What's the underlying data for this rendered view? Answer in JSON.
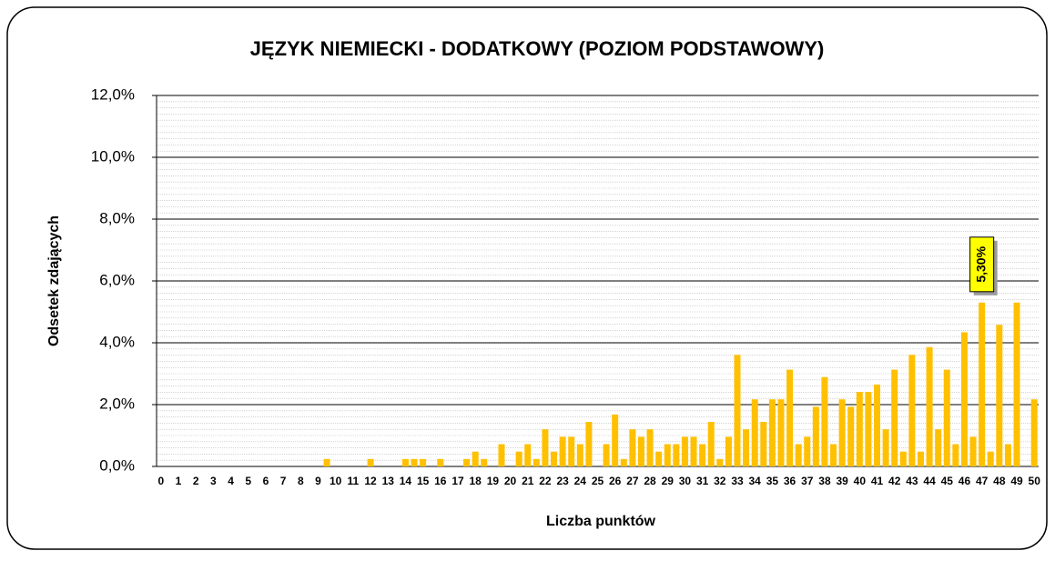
{
  "chart_data": {
    "type": "bar",
    "title": "JĘZYK NIEMIECKI - DODATKOWY (POZIOM PODSTAWOWY)",
    "x_label": "Liczba punktów",
    "y_label": "Odsetek zdających",
    "color": "#ffc000",
    "grid": true,
    "ylim": [
      0,
      12
    ],
    "yticks": [
      {
        "value": 0,
        "label": "0,0%"
      },
      {
        "value": 2,
        "label": "2,0%"
      },
      {
        "value": 4,
        "label": "4,0%"
      },
      {
        "value": 6,
        "label": "6,0%"
      },
      {
        "value": 8,
        "label": "8,0%"
      },
      {
        "value": 10,
        "label": "10,0%"
      },
      {
        "value": 12,
        "label": "12,0%"
      }
    ],
    "categories": [
      "0",
      null,
      "1",
      null,
      "2",
      null,
      "3",
      null,
      "4",
      null,
      "5",
      null,
      "6",
      null,
      "7",
      null,
      "8",
      null,
      "9",
      null,
      "10",
      null,
      "11",
      null,
      "12",
      null,
      "13",
      null,
      "14",
      null,
      "15",
      null,
      "16",
      null,
      "17",
      null,
      "18",
      null,
      "19",
      null,
      "20",
      null,
      "21",
      null,
      "22",
      null,
      "23",
      null,
      "24",
      null,
      "25",
      null,
      "26",
      null,
      "27",
      null,
      "28",
      null,
      "29",
      null,
      "30",
      null,
      "31",
      null,
      "32",
      null,
      "33",
      null,
      "34",
      null,
      "35",
      null,
      "36",
      null,
      "37",
      null,
      "38",
      null,
      "39",
      null,
      "40",
      null,
      "41",
      null,
      "42",
      null,
      "43",
      null,
      "44",
      null,
      "45",
      null,
      "46",
      null,
      "47",
      null,
      "48",
      null,
      "49",
      null,
      "50"
    ],
    "values": [
      0,
      0,
      0,
      0,
      0,
      0,
      0,
      0,
      0,
      0,
      0,
      0,
      0,
      0,
      0,
      0,
      0,
      0,
      0,
      0.24,
      0,
      0,
      0,
      0,
      0.24,
      0,
      0,
      0,
      0.24,
      0.24,
      0.24,
      0,
      0.24,
      0,
      0,
      0.24,
      0.48,
      0.24,
      0,
      0.72,
      0,
      0.48,
      0.72,
      0.24,
      1.2,
      0.48,
      0.96,
      0.96,
      0.72,
      1.44,
      0,
      0.72,
      1.68,
      0.24,
      1.2,
      0.96,
      1.2,
      0.48,
      0.72,
      0.72,
      0.96,
      0.96,
      0.72,
      1.44,
      0.24,
      0.96,
      3.61,
      1.2,
      2.17,
      1.44,
      2.17,
      2.17,
      3.13,
      0.72,
      0.96,
      1.93,
      2.89,
      0.72,
      2.17,
      1.93,
      2.41,
      2.41,
      2.65,
      1.2,
      3.13,
      0.48,
      3.61,
      0.48,
      3.86,
      1.2,
      3.13,
      0.72,
      4.34,
      0.96,
      5.3,
      0.48,
      4.58,
      0.72,
      5.3,
      0,
      2.17
    ],
    "value_labels": [
      null,
      null,
      null,
      null,
      null,
      null,
      null,
      null,
      null,
      null,
      null,
      null,
      null,
      null,
      null,
      null,
      null,
      null,
      null,
      null,
      null,
      null,
      null,
      null,
      null,
      null,
      null,
      null,
      null,
      null,
      null,
      null,
      null,
      null,
      null,
      null,
      null,
      null,
      null,
      null,
      null,
      null,
      null,
      null,
      null,
      null,
      null,
      null,
      null,
      null,
      null,
      null,
      null,
      null,
      null,
      null,
      null,
      null,
      null,
      null,
      null,
      null,
      null,
      null,
      null,
      null,
      null,
      null,
      null,
      null,
      null,
      null,
      null,
      null,
      null,
      null,
      null,
      null,
      null,
      null,
      null,
      null,
      null,
      null,
      null,
      null,
      null,
      null,
      null,
      null,
      null,
      null,
      null,
      null,
      "5,30%",
      null,
      null,
      null,
      null,
      null,
      null
    ]
  }
}
